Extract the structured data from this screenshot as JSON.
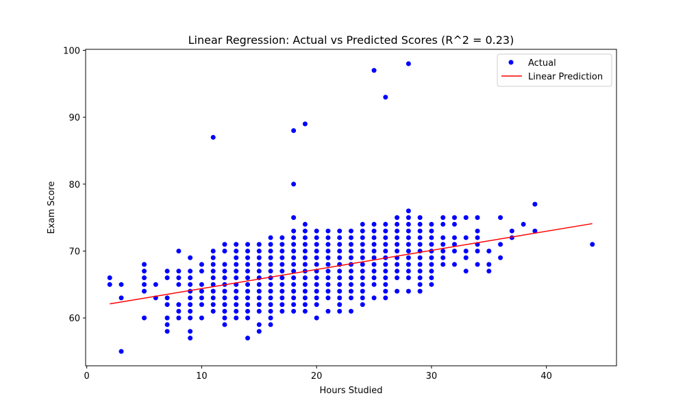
{
  "chart_data": {
    "type": "scatter",
    "title": "Linear Regression: Actual vs Predicted Scores (R^2 = 0.23)",
    "xlabel": "Hours Studied",
    "ylabel": "Exam Score",
    "xlim": [
      -0.1,
      46.1
    ],
    "ylim": [
      52.85,
      100.15
    ],
    "xticks": [
      0,
      10,
      20,
      30,
      40
    ],
    "yticks": [
      60,
      70,
      80,
      90,
      100
    ],
    "grid": false,
    "legend_position": "top-right",
    "series": [
      {
        "name": "Actual",
        "kind": "points",
        "color": "#0000ff",
        "points": [
          [
            2,
            65
          ],
          [
            2,
            66
          ],
          [
            3,
            55
          ],
          [
            3,
            63
          ],
          [
            3,
            65
          ],
          [
            5,
            60
          ],
          [
            5,
            64
          ],
          [
            5,
            65
          ],
          [
            5,
            66
          ],
          [
            5,
            67
          ],
          [
            5,
            68
          ],
          [
            6,
            63
          ],
          [
            6,
            65
          ],
          [
            7,
            58
          ],
          [
            7,
            59
          ],
          [
            7,
            60
          ],
          [
            7,
            62
          ],
          [
            7,
            63
          ],
          [
            7,
            66
          ],
          [
            7,
            67
          ],
          [
            8,
            60
          ],
          [
            8,
            61
          ],
          [
            8,
            62
          ],
          [
            8,
            65
          ],
          [
            8,
            66
          ],
          [
            8,
            67
          ],
          [
            8,
            70
          ],
          [
            9,
            57
          ],
          [
            9,
            58
          ],
          [
            9,
            60
          ],
          [
            9,
            61
          ],
          [
            9,
            62
          ],
          [
            9,
            63
          ],
          [
            9,
            64
          ],
          [
            9,
            65
          ],
          [
            9,
            66
          ],
          [
            9,
            67
          ],
          [
            9,
            69
          ],
          [
            10,
            60
          ],
          [
            10,
            62
          ],
          [
            10,
            63
          ],
          [
            10,
            64
          ],
          [
            10,
            65
          ],
          [
            10,
            67
          ],
          [
            10,
            68
          ],
          [
            11,
            61
          ],
          [
            11,
            62
          ],
          [
            11,
            63
          ],
          [
            11,
            64
          ],
          [
            11,
            65
          ],
          [
            11,
            66
          ],
          [
            11,
            67
          ],
          [
            11,
            68
          ],
          [
            11,
            69
          ],
          [
            11,
            70
          ],
          [
            11,
            87
          ],
          [
            12,
            59
          ],
          [
            12,
            60
          ],
          [
            12,
            61
          ],
          [
            12,
            62
          ],
          [
            12,
            63
          ],
          [
            12,
            64
          ],
          [
            12,
            65
          ],
          [
            12,
            66
          ],
          [
            12,
            67
          ],
          [
            12,
            68
          ],
          [
            12,
            70
          ],
          [
            12,
            71
          ],
          [
            13,
            60
          ],
          [
            13,
            61
          ],
          [
            13,
            62
          ],
          [
            13,
            63
          ],
          [
            13,
            64
          ],
          [
            13,
            65
          ],
          [
            13,
            66
          ],
          [
            13,
            67
          ],
          [
            13,
            68
          ],
          [
            13,
            69
          ],
          [
            13,
            70
          ],
          [
            13,
            71
          ],
          [
            14,
            57
          ],
          [
            14,
            60
          ],
          [
            14,
            61
          ],
          [
            14,
            62
          ],
          [
            14,
            63
          ],
          [
            14,
            64
          ],
          [
            14,
            65
          ],
          [
            14,
            66
          ],
          [
            14,
            67
          ],
          [
            14,
            68
          ],
          [
            14,
            69
          ],
          [
            14,
            70
          ],
          [
            14,
            71
          ],
          [
            15,
            58
          ],
          [
            15,
            59
          ],
          [
            15,
            61
          ],
          [
            15,
            62
          ],
          [
            15,
            63
          ],
          [
            15,
            64
          ],
          [
            15,
            65
          ],
          [
            15,
            66
          ],
          [
            15,
            67
          ],
          [
            15,
            68
          ],
          [
            15,
            69
          ],
          [
            15,
            70
          ],
          [
            15,
            71
          ],
          [
            16,
            59
          ],
          [
            16,
            60
          ],
          [
            16,
            61
          ],
          [
            16,
            62
          ],
          [
            16,
            63
          ],
          [
            16,
            64
          ],
          [
            16,
            65
          ],
          [
            16,
            66
          ],
          [
            16,
            67
          ],
          [
            16,
            68
          ],
          [
            16,
            69
          ],
          [
            16,
            70
          ],
          [
            16,
            71
          ],
          [
            16,
            72
          ],
          [
            17,
            61
          ],
          [
            17,
            62
          ],
          [
            17,
            63
          ],
          [
            17,
            64
          ],
          [
            17,
            65
          ],
          [
            17,
            66
          ],
          [
            17,
            67
          ],
          [
            17,
            68
          ],
          [
            17,
            69
          ],
          [
            17,
            70
          ],
          [
            17,
            71
          ],
          [
            17,
            72
          ],
          [
            18,
            61
          ],
          [
            18,
            62
          ],
          [
            18,
            63
          ],
          [
            18,
            64
          ],
          [
            18,
            65
          ],
          [
            18,
            66
          ],
          [
            18,
            67
          ],
          [
            18,
            68
          ],
          [
            18,
            69
          ],
          [
            18,
            70
          ],
          [
            18,
            71
          ],
          [
            18,
            72
          ],
          [
            18,
            73
          ],
          [
            18,
            75
          ],
          [
            18,
            80
          ],
          [
            18,
            88
          ],
          [
            19,
            61
          ],
          [
            19,
            62
          ],
          [
            19,
            63
          ],
          [
            19,
            64
          ],
          [
            19,
            65
          ],
          [
            19,
            66
          ],
          [
            19,
            67
          ],
          [
            19,
            68
          ],
          [
            19,
            69
          ],
          [
            19,
            70
          ],
          [
            19,
            71
          ],
          [
            19,
            72
          ],
          [
            19,
            73
          ],
          [
            19,
            74
          ],
          [
            19,
            89
          ],
          [
            20,
            60
          ],
          [
            20,
            62
          ],
          [
            20,
            63
          ],
          [
            20,
            64
          ],
          [
            20,
            65
          ],
          [
            20,
            66
          ],
          [
            20,
            67
          ],
          [
            20,
            68
          ],
          [
            20,
            69
          ],
          [
            20,
            70
          ],
          [
            20,
            71
          ],
          [
            20,
            72
          ],
          [
            20,
            73
          ],
          [
            21,
            61
          ],
          [
            21,
            63
          ],
          [
            21,
            64
          ],
          [
            21,
            65
          ],
          [
            21,
            66
          ],
          [
            21,
            67
          ],
          [
            21,
            68
          ],
          [
            21,
            69
          ],
          [
            21,
            70
          ],
          [
            21,
            71
          ],
          [
            21,
            72
          ],
          [
            21,
            73
          ],
          [
            22,
            61
          ],
          [
            22,
            62
          ],
          [
            22,
            63
          ],
          [
            22,
            64
          ],
          [
            22,
            65
          ],
          [
            22,
            66
          ],
          [
            22,
            67
          ],
          [
            22,
            68
          ],
          [
            22,
            69
          ],
          [
            22,
            70
          ],
          [
            22,
            71
          ],
          [
            22,
            72
          ],
          [
            22,
            73
          ],
          [
            23,
            61
          ],
          [
            23,
            63
          ],
          [
            23,
            64
          ],
          [
            23,
            65
          ],
          [
            23,
            66
          ],
          [
            23,
            67
          ],
          [
            23,
            68
          ],
          [
            23,
            69
          ],
          [
            23,
            70
          ],
          [
            23,
            71
          ],
          [
            23,
            72
          ],
          [
            23,
            73
          ],
          [
            24,
            62
          ],
          [
            24,
            63
          ],
          [
            24,
            64
          ],
          [
            24,
            65
          ],
          [
            24,
            66
          ],
          [
            24,
            67
          ],
          [
            24,
            68
          ],
          [
            24,
            69
          ],
          [
            24,
            70
          ],
          [
            24,
            71
          ],
          [
            24,
            72
          ],
          [
            24,
            73
          ],
          [
            24,
            74
          ],
          [
            25,
            63
          ],
          [
            25,
            65
          ],
          [
            25,
            66
          ],
          [
            25,
            67
          ],
          [
            25,
            68
          ],
          [
            25,
            69
          ],
          [
            25,
            70
          ],
          [
            25,
            71
          ],
          [
            25,
            72
          ],
          [
            25,
            73
          ],
          [
            25,
            74
          ],
          [
            25,
            97
          ],
          [
            26,
            63
          ],
          [
            26,
            64
          ],
          [
            26,
            65
          ],
          [
            26,
            66
          ],
          [
            26,
            67
          ],
          [
            26,
            68
          ],
          [
            26,
            69
          ],
          [
            26,
            70
          ],
          [
            26,
            71
          ],
          [
            26,
            72
          ],
          [
            26,
            73
          ],
          [
            26,
            74
          ],
          [
            26,
            93
          ],
          [
            27,
            64
          ],
          [
            27,
            66
          ],
          [
            27,
            67
          ],
          [
            27,
            68
          ],
          [
            27,
            69
          ],
          [
            27,
            70
          ],
          [
            27,
            71
          ],
          [
            27,
            72
          ],
          [
            27,
            73
          ],
          [
            27,
            74
          ],
          [
            27,
            75
          ],
          [
            28,
            64
          ],
          [
            28,
            66
          ],
          [
            28,
            67
          ],
          [
            28,
            68
          ],
          [
            28,
            69
          ],
          [
            28,
            70
          ],
          [
            28,
            71
          ],
          [
            28,
            72
          ],
          [
            28,
            73
          ],
          [
            28,
            74
          ],
          [
            28,
            75
          ],
          [
            28,
            76
          ],
          [
            28,
            98
          ],
          [
            29,
            64
          ],
          [
            29,
            65
          ],
          [
            29,
            66
          ],
          [
            29,
            67
          ],
          [
            29,
            68
          ],
          [
            29,
            69
          ],
          [
            29,
            70
          ],
          [
            29,
            71
          ],
          [
            29,
            72
          ],
          [
            29,
            73
          ],
          [
            29,
            74
          ],
          [
            29,
            75
          ],
          [
            30,
            65
          ],
          [
            30,
            66
          ],
          [
            30,
            67
          ],
          [
            30,
            68
          ],
          [
            30,
            69
          ],
          [
            30,
            70
          ],
          [
            30,
            71
          ],
          [
            30,
            72
          ],
          [
            30,
            73
          ],
          [
            30,
            74
          ],
          [
            31,
            68
          ],
          [
            31,
            69
          ],
          [
            31,
            70
          ],
          [
            31,
            71
          ],
          [
            31,
            72
          ],
          [
            31,
            74
          ],
          [
            31,
            75
          ],
          [
            32,
            68
          ],
          [
            32,
            70
          ],
          [
            32,
            71
          ],
          [
            32,
            72
          ],
          [
            32,
            74
          ],
          [
            32,
            75
          ],
          [
            33,
            67
          ],
          [
            33,
            69
          ],
          [
            33,
            70
          ],
          [
            33,
            72
          ],
          [
            33,
            75
          ],
          [
            34,
            68
          ],
          [
            34,
            70
          ],
          [
            34,
            71
          ],
          [
            34,
            72
          ],
          [
            34,
            73
          ],
          [
            34,
            75
          ],
          [
            35,
            67
          ],
          [
            35,
            68
          ],
          [
            35,
            70
          ],
          [
            36,
            69
          ],
          [
            36,
            71
          ],
          [
            36,
            75
          ],
          [
            37,
            72
          ],
          [
            37,
            73
          ],
          [
            38,
            74
          ],
          [
            39,
            73
          ],
          [
            39,
            77
          ],
          [
            44,
            71
          ]
        ]
      },
      {
        "name": "Linear Prediction",
        "kind": "line",
        "color": "#ff0000",
        "x": [
          2,
          44
        ],
        "y": [
          62.1,
          74.1
        ]
      }
    ]
  }
}
